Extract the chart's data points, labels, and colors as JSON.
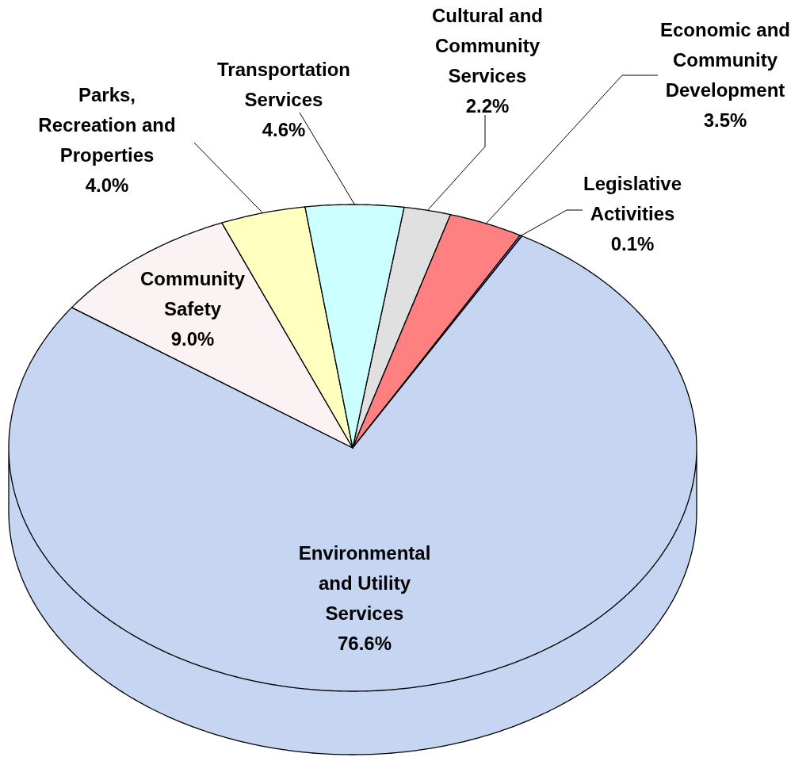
{
  "chart_data": {
    "type": "pie",
    "categories": [
      "Cultural and Community Services",
      "Economic and Community Development",
      "Legislative Activities",
      "Environmental and Utility Services",
      "Community Safety",
      "Parks, Recreation and Properties",
      "Transportation Services"
    ],
    "values": [
      2.2,
      3.5,
      0.1,
      76.6,
      9.0,
      4.0,
      4.6
    ],
    "colors": [
      "#e0e0e0",
      "#ff8080",
      "#8080ff",
      "#c6d6f2",
      "#fbf3f3",
      "#ffffc0",
      "#ccffff"
    ],
    "value_labels": [
      "2.2%",
      "3.5%",
      "0.1%",
      "76.6%",
      "9.0%",
      "4.0%",
      "4.6%"
    ]
  }
}
